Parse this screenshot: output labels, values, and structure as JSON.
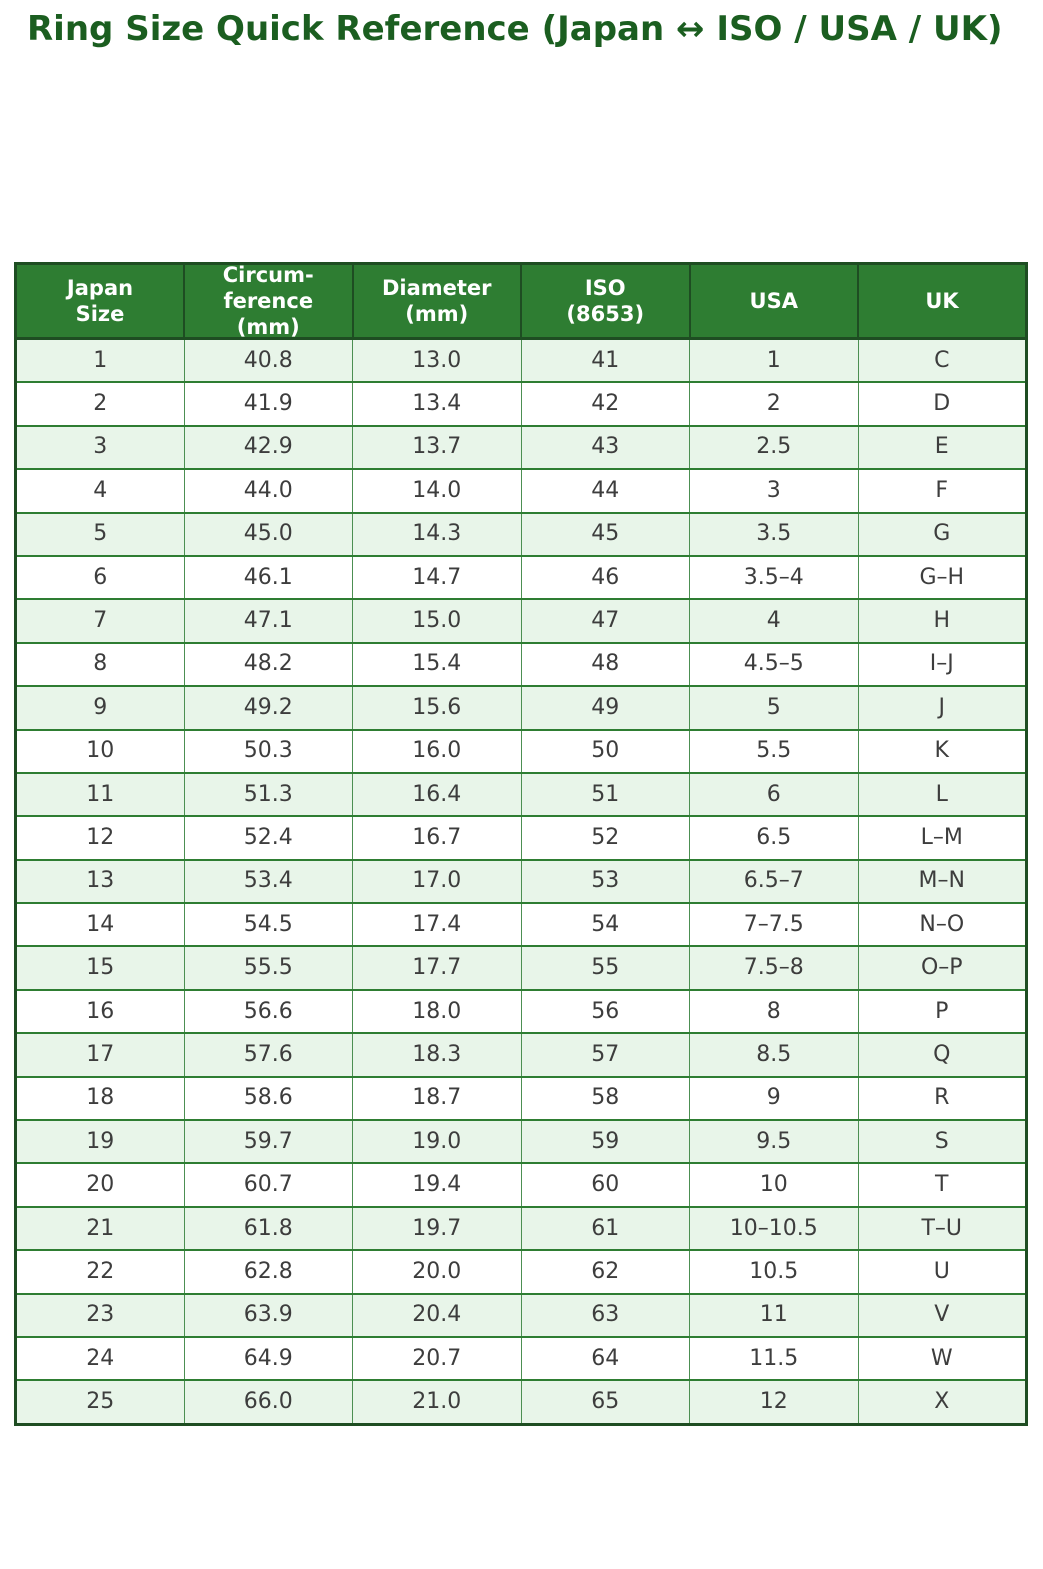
{
  "page_title": "Ring Size Quick Reference (Japan ↔ ISO / USA / UK)",
  "colors": {
    "title_green": "#1b5e20",
    "header_bg": "#2e7d32",
    "header_text": "#ffffff",
    "row_alt_bg": "#e8f5e9",
    "row_bg": "#ffffff",
    "grid_dark": "#1e4d22",
    "grid_mid": "#2e7d32",
    "grid_light": "#4c8f52",
    "cell_text": "#3d3d3d"
  },
  "chart_data": {
    "type": "table",
    "title": "Ring Size Quick Reference (Japan ↔ ISO / USA / UK)",
    "columns": [
      {
        "label_lines": [
          "Japan",
          "Size"
        ]
      },
      {
        "label_lines": [
          "Circum-",
          "ference",
          "(mm)"
        ]
      },
      {
        "label_lines": [
          "Diameter",
          "(mm)"
        ]
      },
      {
        "label_lines": [
          "ISO",
          "(8653)"
        ]
      },
      {
        "label_lines": [
          "USA"
        ]
      },
      {
        "label_lines": [
          "UK"
        ]
      }
    ],
    "rows": [
      [
        "1",
        "40.8",
        "13.0",
        "41",
        "1",
        "C"
      ],
      [
        "2",
        "41.9",
        "13.4",
        "42",
        "2",
        "D"
      ],
      [
        "3",
        "42.9",
        "13.7",
        "43",
        "2.5",
        "E"
      ],
      [
        "4",
        "44.0",
        "14.0",
        "44",
        "3",
        "F"
      ],
      [
        "5",
        "45.0",
        "14.3",
        "45",
        "3.5",
        "G"
      ],
      [
        "6",
        "46.1",
        "14.7",
        "46",
        "3.5–4",
        "G–H"
      ],
      [
        "7",
        "47.1",
        "15.0",
        "47",
        "4",
        "H"
      ],
      [
        "8",
        "48.2",
        "15.4",
        "48",
        "4.5–5",
        "I–J"
      ],
      [
        "9",
        "49.2",
        "15.6",
        "49",
        "5",
        "J"
      ],
      [
        "10",
        "50.3",
        "16.0",
        "50",
        "5.5",
        "K"
      ],
      [
        "11",
        "51.3",
        "16.4",
        "51",
        "6",
        "L"
      ],
      [
        "12",
        "52.4",
        "16.7",
        "52",
        "6.5",
        "L–M"
      ],
      [
        "13",
        "53.4",
        "17.0",
        "53",
        "6.5–7",
        "M–N"
      ],
      [
        "14",
        "54.5",
        "17.4",
        "54",
        "7–7.5",
        "N–O"
      ],
      [
        "15",
        "55.5",
        "17.7",
        "55",
        "7.5–8",
        "O–P"
      ],
      [
        "16",
        "56.6",
        "18.0",
        "56",
        "8",
        "P"
      ],
      [
        "17",
        "57.6",
        "18.3",
        "57",
        "8.5",
        "Q"
      ],
      [
        "18",
        "58.6",
        "18.7",
        "58",
        "9",
        "R"
      ],
      [
        "19",
        "59.7",
        "19.0",
        "59",
        "9.5",
        "S"
      ],
      [
        "20",
        "60.7",
        "19.4",
        "60",
        "10",
        "T"
      ],
      [
        "21",
        "61.8",
        "19.7",
        "61",
        "10–10.5",
        "T–U"
      ],
      [
        "22",
        "62.8",
        "20.0",
        "62",
        "10.5",
        "U"
      ],
      [
        "23",
        "63.9",
        "20.4",
        "63",
        "11",
        "V"
      ],
      [
        "24",
        "64.9",
        "20.7",
        "64",
        "11.5",
        "W"
      ],
      [
        "25",
        "66.0",
        "21.0",
        "65",
        "12",
        "X"
      ]
    ]
  }
}
